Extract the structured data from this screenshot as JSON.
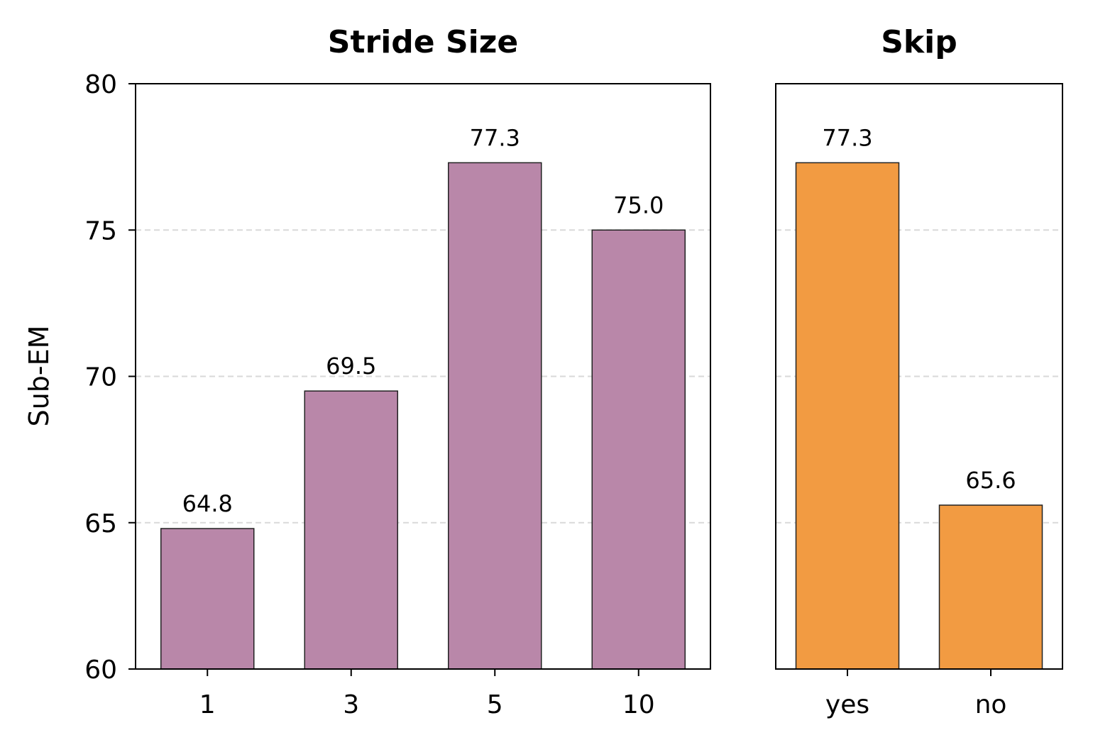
{
  "chart_data": [
    {
      "type": "bar",
      "title": "Stride Size",
      "xlabel": "",
      "ylabel": "Sub-EM",
      "categories": [
        "1",
        "3",
        "5",
        "10"
      ],
      "values": [
        64.8,
        69.5,
        77.3,
        75.0
      ],
      "value_labels": [
        "64.8",
        "69.5",
        "77.3",
        "75.0"
      ],
      "ylim": [
        60,
        80
      ],
      "yticks": [
        "60",
        "65",
        "70",
        "75",
        "80"
      ],
      "grid": "horizontal dashed",
      "bar_color": "#b987a9"
    },
    {
      "type": "bar",
      "title": "Skip",
      "xlabel": "",
      "ylabel": "",
      "categories": [
        "yes",
        "no"
      ],
      "values": [
        77.3,
        65.6
      ],
      "value_labels": [
        "77.3",
        "65.6"
      ],
      "ylim": [
        60,
        80
      ],
      "shared_y_axis": true,
      "grid": "horizontal dashed",
      "bar_color": "#f29b42"
    }
  ]
}
